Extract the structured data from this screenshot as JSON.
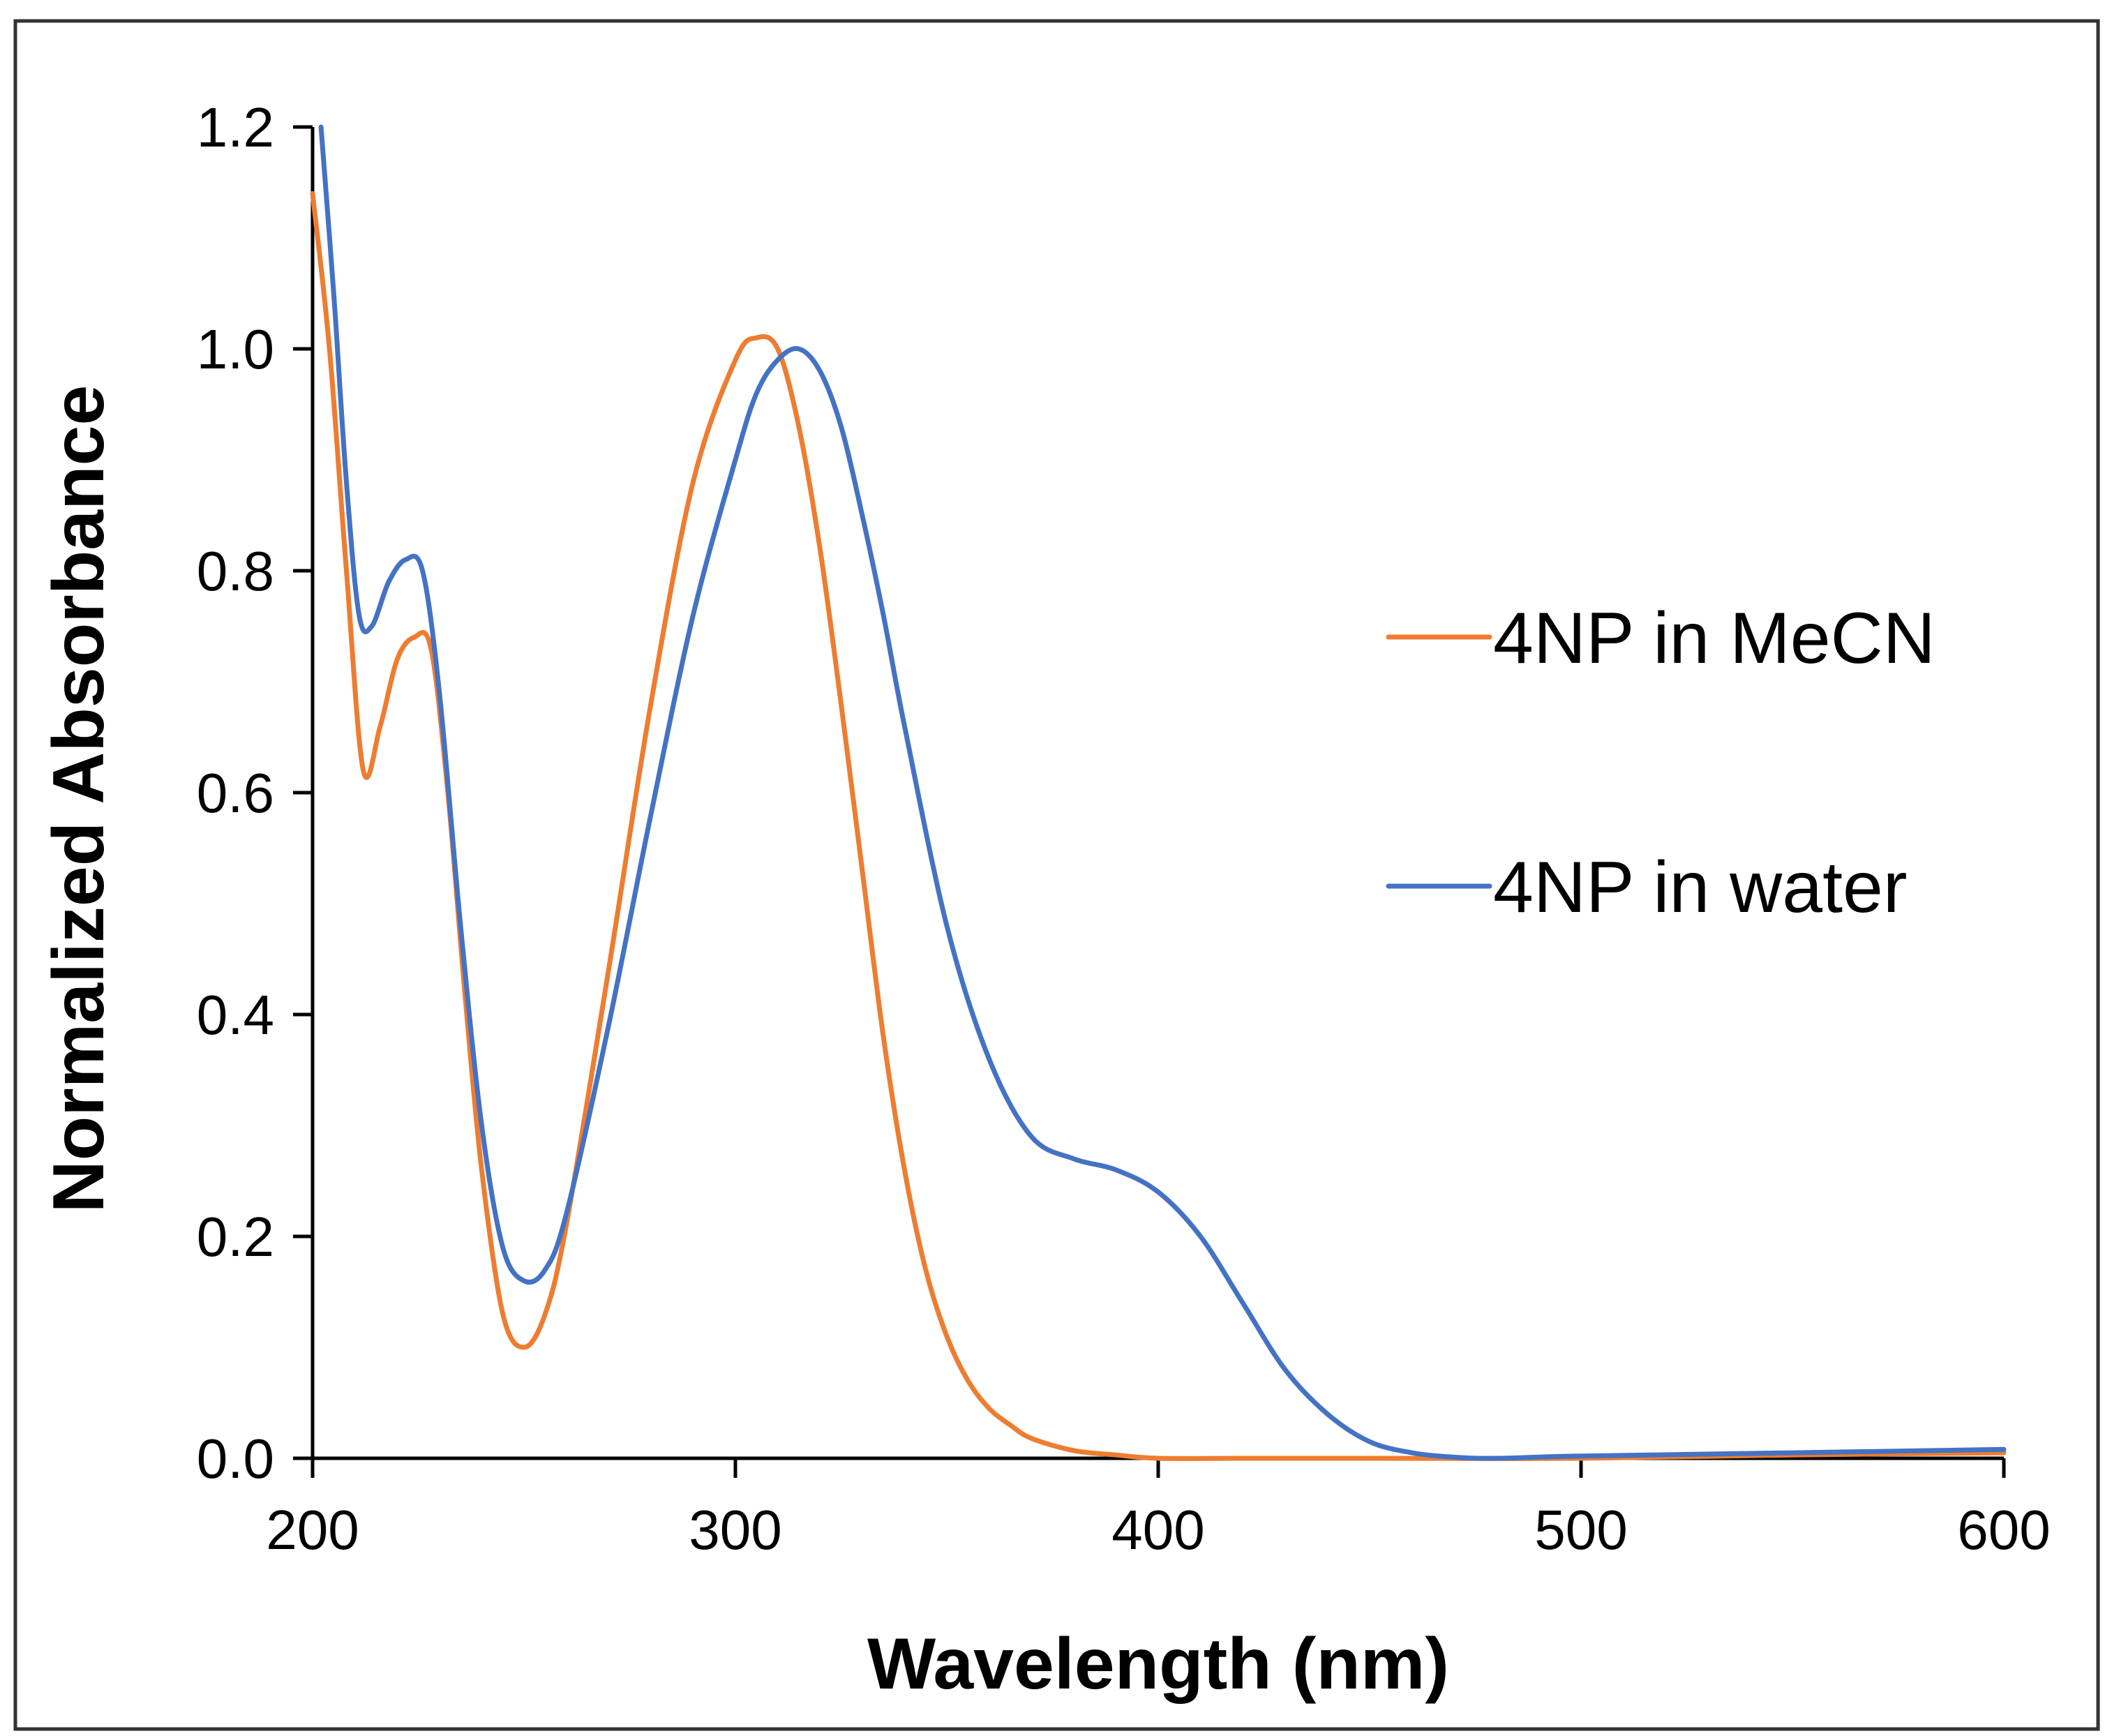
{
  "chart_data": {
    "type": "line",
    "title": "",
    "xlabel": "Wavelength (nm)",
    "ylabel": "Normalized Absorbance",
    "xlim": [
      200,
      600
    ],
    "ylim": [
      0,
      1.2
    ],
    "xticks": [
      "200",
      "300",
      "400",
      "500",
      "600"
    ],
    "yticks": [
      "0.0",
      "0.2",
      "0.4",
      "0.6",
      "0.8",
      "1.0",
      "1.2"
    ],
    "grid": false,
    "legend_position": "right",
    "series": [
      {
        "name": "4NP in MeCN",
        "color": "#ED7D31",
        "x": [
          200,
          204,
          208,
          212,
          216,
          220,
          224,
          228,
          232,
          236,
          240,
          245,
          250,
          255,
          260,
          270,
          280,
          290,
          300,
          305,
          310,
          315,
          320,
          325,
          330,
          335,
          340,
          345,
          350,
          355,
          360,
          365,
          370,
          380,
          390,
          400,
          420,
          450,
          500,
          550,
          600
        ],
        "values": [
          1.14,
          1.0,
          0.8,
          0.62,
          0.66,
          0.72,
          0.74,
          0.73,
          0.6,
          0.42,
          0.26,
          0.13,
          0.1,
          0.13,
          0.21,
          0.44,
          0.68,
          0.88,
          0.99,
          1.01,
          1.0,
          0.93,
          0.82,
          0.68,
          0.53,
          0.38,
          0.26,
          0.17,
          0.11,
          0.07,
          0.045,
          0.03,
          0.018,
          0.007,
          0.003,
          0.0,
          0.0,
          0.0,
          0.0,
          0.003,
          0.005
        ]
      },
      {
        "name": "4NP in water",
        "color": "#4472C4",
        "x": [
          202,
          205,
          208,
          211,
          214,
          218,
          222,
          226,
          230,
          235,
          240,
          245,
          250,
          255,
          260,
          270,
          280,
          290,
          300,
          305,
          310,
          315,
          320,
          325,
          330,
          335,
          340,
          350,
          360,
          370,
          380,
          390,
          400,
          410,
          420,
          430,
          440,
          450,
          460,
          470,
          480,
          500,
          550,
          600
        ],
        "values": [
          1.2,
          1.05,
          0.88,
          0.76,
          0.75,
          0.79,
          0.81,
          0.8,
          0.69,
          0.48,
          0.3,
          0.19,
          0.16,
          0.17,
          0.22,
          0.39,
          0.58,
          0.76,
          0.9,
          0.96,
          0.99,
          1.0,
          0.98,
          0.93,
          0.85,
          0.76,
          0.66,
          0.48,
          0.36,
          0.29,
          0.27,
          0.26,
          0.24,
          0.2,
          0.14,
          0.08,
          0.04,
          0.015,
          0.005,
          0.001,
          0.0,
          0.002,
          0.005,
          0.008
        ]
      }
    ]
  }
}
